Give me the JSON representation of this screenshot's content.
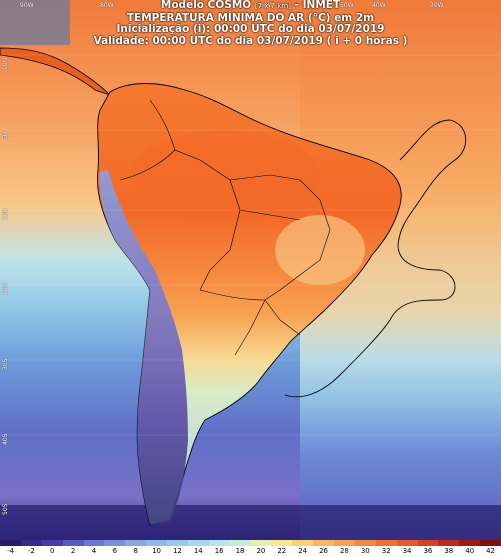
{
  "header": {
    "line1_main": "Modelo COSMO",
    "line1_small": "[7 x 7 km]",
    "line1_tail": "- INMET",
    "line2": "TEMPERATURA MÍNIMA DO AR (°C) em 2m",
    "line3": "Inicialização (i): 00:00 UTC do dia 03/07/2019",
    "line4": "Validade: 00:00 UTC do dia 03/07/2019 ( i + 0 horas )"
  },
  "map": {
    "region": "South America",
    "longitude_labels": [
      "90W",
      "80W",
      "70W",
      "60W",
      "50W",
      "40W",
      "30W"
    ],
    "latitude_labels": [
      "10N",
      "EQ",
      "10S",
      "20S",
      "30S",
      "40S",
      "50S"
    ],
    "colors": {
      "ocean_warm": "#f4a06a",
      "land_hot": "#f26b2a",
      "land_warm": "#f8b86a",
      "andes_cold": "#9aa8e8",
      "south_cold": "#4a5fa8",
      "far_south": "#2a2f7a",
      "border": "#000000"
    }
  },
  "legend": {
    "ticks": [
      "-4",
      "-2",
      "0",
      "2",
      "4",
      "6",
      "8",
      "10",
      "12",
      "14",
      "16",
      "18",
      "20",
      "22",
      "24",
      "26",
      "28",
      "30",
      "32",
      "34",
      "36",
      "38",
      "40",
      "42"
    ],
    "colors": [
      "#2a1a6a",
      "#3a2a8a",
      "#4a3aa8",
      "#5a5ac0",
      "#6a78d0",
      "#7a90da",
      "#8aa8e0",
      "#90b8e8",
      "#98c8ee",
      "#a8d8f0",
      "#b8e4f0",
      "#c8ecd8",
      "#e8f0b0",
      "#f8e890",
      "#fad070",
      "#f8b860",
      "#f6a050",
      "#f48840",
      "#f07030",
      "#e85828",
      "#d84020",
      "#c02818",
      "#a01810",
      "#801008"
    ]
  }
}
